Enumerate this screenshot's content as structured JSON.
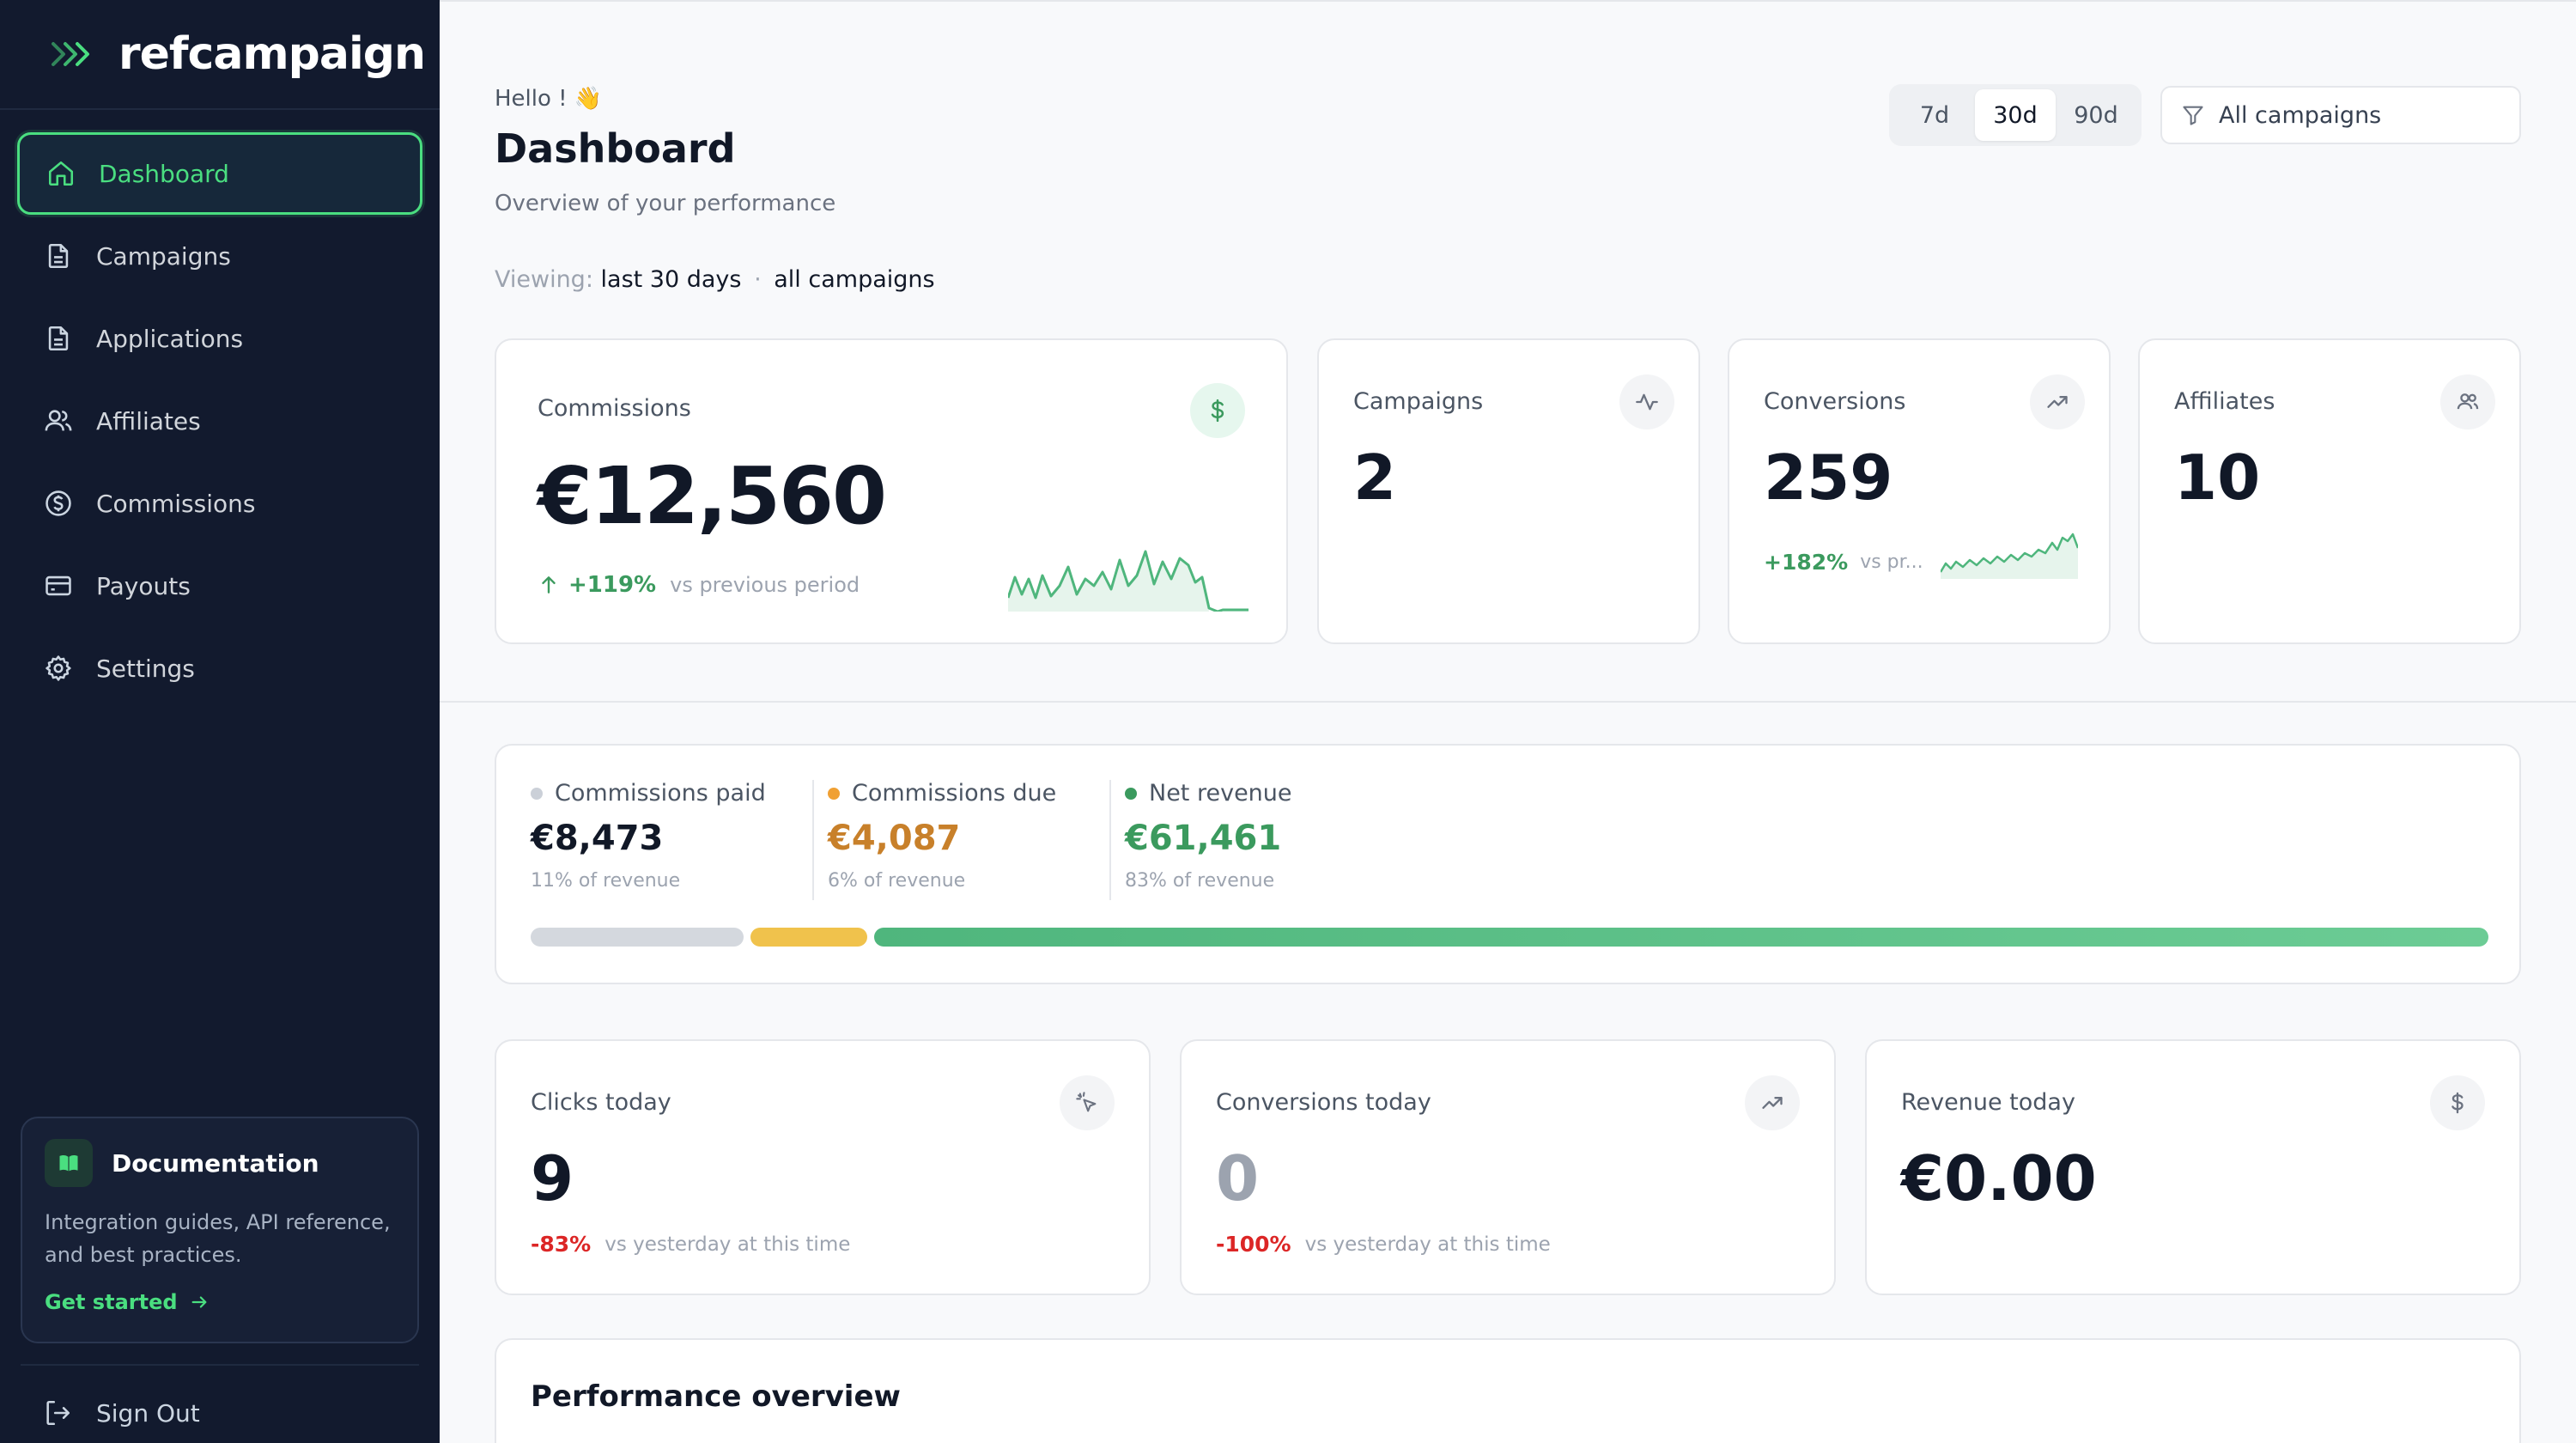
{
  "app": {
    "name": "refcampaign"
  },
  "sidebar": {
    "items": [
      {
        "label": "Dashboard",
        "icon": "home-icon",
        "active": true
      },
      {
        "label": "Campaigns",
        "icon": "document-icon"
      },
      {
        "label": "Applications",
        "icon": "document-icon"
      },
      {
        "label": "Affiliates",
        "icon": "users-icon"
      },
      {
        "label": "Commissions",
        "icon": "dollar-circle-icon"
      },
      {
        "label": "Payouts",
        "icon": "card-icon"
      },
      {
        "label": "Settings",
        "icon": "gear-icon"
      }
    ],
    "doc_card": {
      "title": "Documentation",
      "text": "Integration guides, API reference, and best practices.",
      "link": "Get started"
    },
    "signout": "Sign Out"
  },
  "header": {
    "greeting": "Hello ! 👋",
    "title": "Dashboard",
    "subtitle": "Overview of your performance",
    "viewing_prefix": "Viewing:",
    "viewing_period": "last 30 days",
    "viewing_sep": "·",
    "viewing_scope": "all campaigns",
    "ranges": [
      "7d",
      "30d",
      "90d"
    ],
    "active_range": "30d",
    "campaign_filter": "All campaigns"
  },
  "kpis": {
    "commissions": {
      "label": "Commissions",
      "value": "€12,560",
      "delta": "+119%",
      "delta_note": "vs previous period",
      "icon": "dollar-icon"
    },
    "campaigns": {
      "label": "Campaigns",
      "value": "2",
      "icon": "activity-icon"
    },
    "conversions": {
      "label": "Conversions",
      "value": "259",
      "delta": "+182%",
      "delta_note": "vs pr...",
      "icon": "trending-up-icon"
    },
    "affiliates": {
      "label": "Affiliates",
      "value": "10",
      "icon": "users-icon"
    }
  },
  "revenue_split": {
    "paid": {
      "label": "Commissions paid",
      "value": "€8,473",
      "sub": "11% of revenue",
      "color": "#cbd0d8",
      "share": 0.11
    },
    "due": {
      "label": "Commissions due",
      "value": "€4,087",
      "sub": "6% of revenue",
      "color": "#f0c24c",
      "share": 0.06
    },
    "net": {
      "label": "Net revenue",
      "value": "€61,461",
      "sub": "83% of revenue",
      "color": "#4fb67d",
      "share": 0.83
    }
  },
  "today": {
    "clicks": {
      "label": "Clicks today",
      "value": "9",
      "delta": "-83%",
      "note": "vs yesterday at this time",
      "icon": "cursor-click-icon"
    },
    "conversions": {
      "label": "Conversions today",
      "value": "0",
      "delta": "-100%",
      "note": "vs yesterday at this time",
      "icon": "trending-up-icon"
    },
    "revenue": {
      "label": "Revenue today",
      "value": "€0.00",
      "icon": "dollar-icon"
    }
  },
  "performance": {
    "title": "Performance overview"
  },
  "colors": {
    "accent": "#4ade80",
    "sidebar_bg": "#121a2e",
    "positive": "#3b9a5e",
    "negative": "#dc2626",
    "due": "#c8802a"
  }
}
